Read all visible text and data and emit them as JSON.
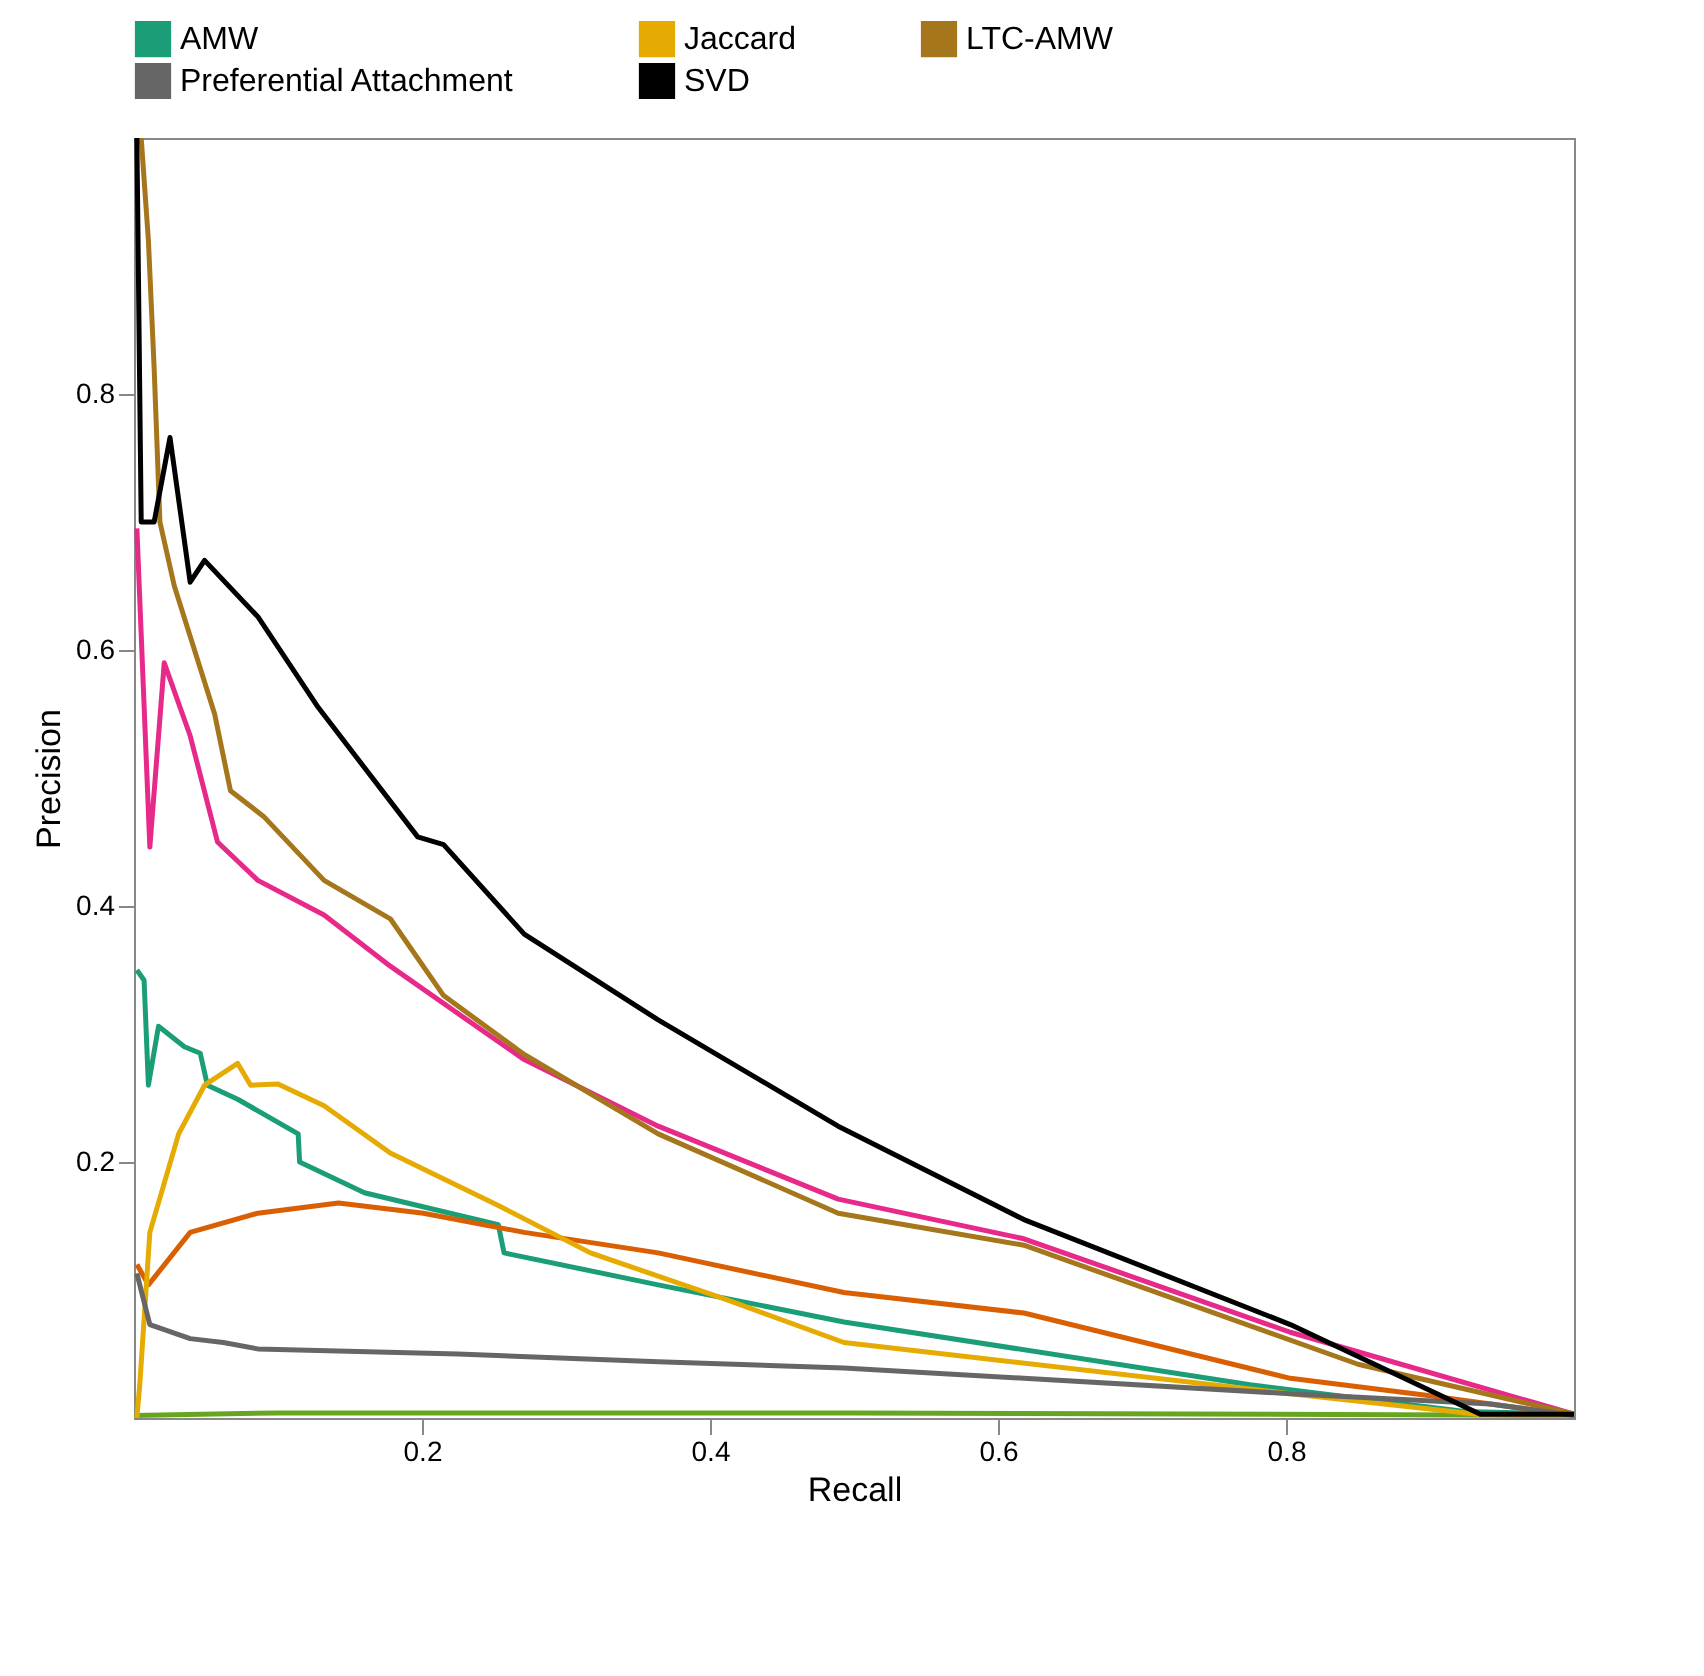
{
  "chart_data": {
    "type": "line",
    "xlabel": "Recall",
    "ylabel": "Precision",
    "xlim": [
      0,
      1
    ],
    "ylim": [
      0,
      1
    ],
    "xticks": [
      0.2,
      0.4,
      0.6,
      0.8
    ],
    "yticks": [
      0.2,
      0.4,
      0.6,
      0.8
    ],
    "grid": false,
    "legend": "top",
    "series": [
      {
        "name": "AMW",
        "color": "#1b9e77",
        "x": [
          0.002,
          0.007,
          0.01,
          0.017,
          0.035,
          0.046,
          0.051,
          0.072,
          0.114,
          0.115,
          0.16,
          0.253,
          0.257,
          0.364,
          0.493,
          0.775,
          0.924,
          1.0
        ],
        "values": [
          0.35,
          0.342,
          0.26,
          0.306,
          0.29,
          0.285,
          0.26,
          0.249,
          0.222,
          0.2,
          0.176,
          0.151,
          0.129,
          0.104,
          0.075,
          0.026,
          0.005,
          0.003
        ]
      },
      {
        "color": "#d95f02",
        "x": [
          0.002,
          0.01,
          0.039,
          0.086,
          0.142,
          0.201,
          0.271,
          0.364,
          0.493,
          0.618,
          0.803,
          0.896,
          1.0
        ],
        "values": [
          0.12,
          0.104,
          0.145,
          0.16,
          0.168,
          0.16,
          0.145,
          0.129,
          0.098,
          0.082,
          0.031,
          0.018,
          0.002
        ]
      },
      {
        "color": "#e7298a",
        "x": [
          0.002,
          0.011,
          0.021,
          0.039,
          0.058,
          0.086,
          0.132,
          0.178,
          0.225,
          0.271,
          0.364,
          0.489,
          0.618,
          0.803,
          1.0
        ],
        "values": [
          0.695,
          0.446,
          0.59,
          0.533,
          0.45,
          0.42,
          0.393,
          0.353,
          0.316,
          0.28,
          0.228,
          0.171,
          0.14,
          0.067,
          0.003
        ]
      },
      {
        "color": "#66a61e",
        "x": [
          0.0,
          0.1,
          0.5,
          1.0
        ],
        "values": [
          0.002,
          0.004,
          0.004,
          0.002
        ]
      },
      {
        "name": "Jaccard",
        "color": "#e6ab02",
        "x": [
          0.002,
          0.004,
          0.011,
          0.031,
          0.049,
          0.072,
          0.081,
          0.1,
          0.132,
          0.178,
          0.253,
          0.317,
          0.41,
          0.493,
          0.803,
          0.933,
          1.0
        ],
        "values": [
          0.0,
          0.026,
          0.145,
          0.222,
          0.26,
          0.277,
          0.26,
          0.261,
          0.244,
          0.207,
          0.166,
          0.129,
          0.093,
          0.059,
          0.019,
          0.003,
          0.002
        ]
      },
      {
        "name": "LTC-AMW",
        "color": "#a6761d",
        "x": [
          0.005,
          0.01,
          0.014,
          0.018,
          0.028,
          0.056,
          0.067,
          0.09,
          0.132,
          0.178,
          0.215,
          0.271,
          0.364,
          0.489,
          0.618,
          0.85,
          1.0
        ],
        "values": [
          1.0,
          0.92,
          0.82,
          0.7,
          0.65,
          0.55,
          0.49,
          0.47,
          0.42,
          0.39,
          0.33,
          0.284,
          0.222,
          0.16,
          0.135,
          0.042,
          0.003
        ]
      },
      {
        "name": "Preferential Attachment",
        "color": "#666666",
        "x": [
          0.002,
          0.011,
          0.039,
          0.062,
          0.086,
          0.225,
          0.364,
          0.493,
          0.618,
          0.803,
          0.942,
          1.0
        ],
        "values": [
          0.113,
          0.073,
          0.062,
          0.059,
          0.054,
          0.05,
          0.044,
          0.039,
          0.031,
          0.019,
          0.011,
          0.002
        ]
      },
      {
        "name": "SVD",
        "color": "#000000",
        "x": [
          0.002,
          0.005,
          0.014,
          0.025,
          0.039,
          0.049,
          0.086,
          0.128,
          0.197,
          0.215,
          0.271,
          0.364,
          0.489,
          0.618,
          0.803,
          0.935,
          1.0
        ],
        "values": [
          1.0,
          0.7,
          0.7,
          0.766,
          0.653,
          0.67,
          0.626,
          0.555,
          0.454,
          0.448,
          0.378,
          0.311,
          0.228,
          0.155,
          0.073,
          0.003,
          0.003
        ]
      }
    ]
  }
}
